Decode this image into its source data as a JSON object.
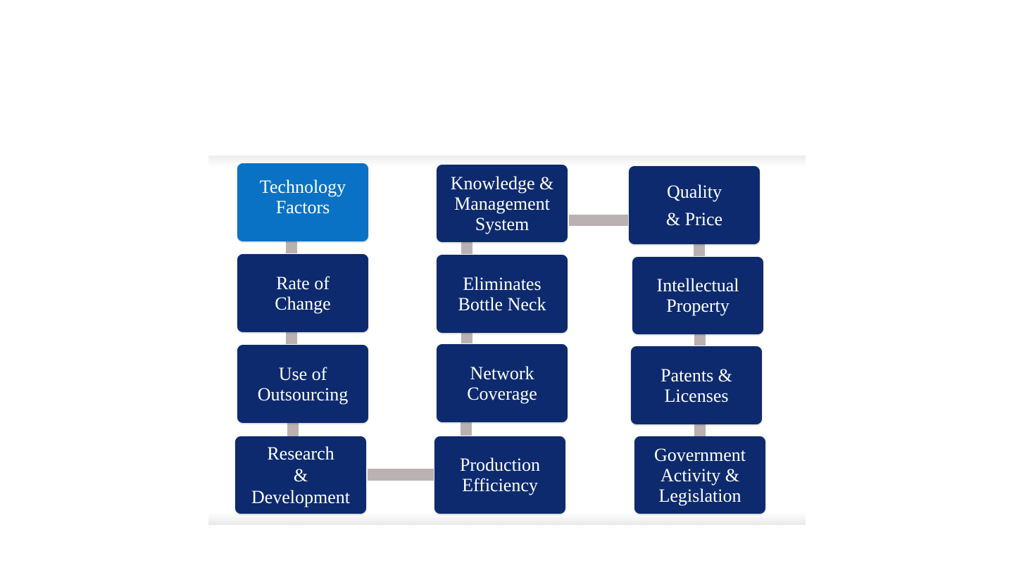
{
  "diagram": {
    "nodes": {
      "technology_factors": "Technology\nFactors",
      "rate_of_change": "Rate of\nChange",
      "use_of_outsourcing": "Use of\nOutsourcing",
      "research_development": "Research\n&\nDevelopment",
      "knowledge_management": "Knowledge &\nManagement\nSystem",
      "eliminates_bottle_neck": "Eliminates\nBottle Neck",
      "network_coverage": "Network\nCoverage",
      "production_efficiency": "Production\nEfficiency",
      "quality_price": "Quality\n& Price",
      "intellectual_property": "Intellectual\nProperty",
      "patents_licenses": "Patents &\nLicenses",
      "government_activity": "Government\nActivity &\nLegislation"
    },
    "colors": {
      "node": "#0d2a6e",
      "highlight_node": "#0a72c4",
      "connector": "#bab2b2",
      "text": "#ffffff"
    }
  }
}
